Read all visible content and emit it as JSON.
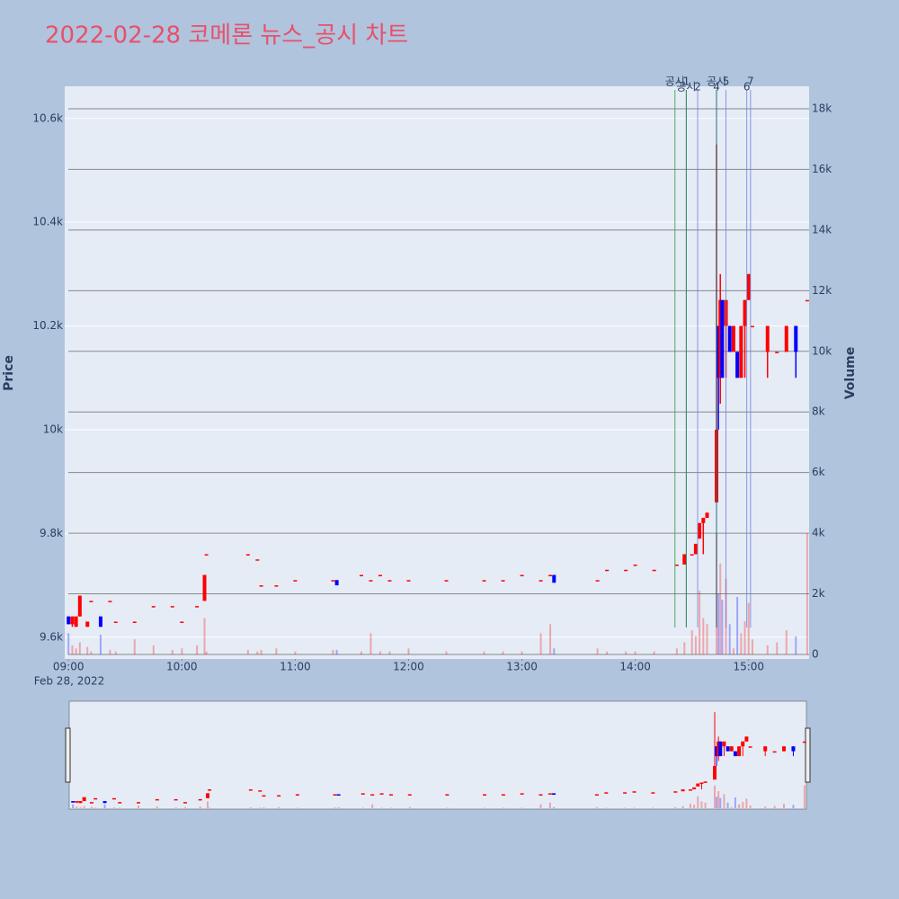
{
  "chart_data": {
    "type": "candlestick",
    "title": "2022-02-28 코메론 뉴스_공시 차트",
    "y_label": "Price",
    "y2_label": "Volume",
    "x_date_label": "Feb 28, 2022",
    "xlim": [
      "08:58",
      "15:32"
    ],
    "xticks": [
      "09:00",
      "10:00",
      "11:00",
      "12:00",
      "13:00",
      "14:00",
      "15:00"
    ],
    "ylim": [
      9558,
      10662
    ],
    "yticks": [
      {
        "value": 9600,
        "label": "9.6k"
      },
      {
        "value": 9800,
        "label": "9.8k"
      },
      {
        "value": 10000,
        "label": "10k"
      },
      {
        "value": 10200,
        "label": "10.2k"
      },
      {
        "value": 10400,
        "label": "10.4k"
      },
      {
        "value": 10600,
        "label": "10.6k"
      }
    ],
    "y2lim": [
      -148,
      18741
    ],
    "y2ticks": [
      0,
      {
        "value": 2000,
        "label": "2k"
      },
      {
        "value": 4000,
        "label": "4k"
      },
      {
        "value": 6000,
        "label": "6k"
      },
      {
        "value": 8000,
        "label": "8k"
      },
      {
        "value": 10000,
        "label": "10k"
      },
      {
        "value": 12000,
        "label": "12k"
      },
      {
        "value": 14000,
        "label": "14k"
      },
      {
        "value": 16000,
        "label": "16k"
      },
      {
        "value": 18000,
        "label": "18k"
      }
    ],
    "increasing_color": "#ff0000",
    "decreasing_color": "#0000ff",
    "x": [
      "09:00",
      "09:02",
      "09:04",
      "09:06",
      "09:10",
      "09:12",
      "09:17",
      "09:22",
      "09:25",
      "09:35",
      "09:45",
      "09:55",
      "10:00",
      "10:08",
      "10:12",
      "10:13",
      "10:35",
      "10:40",
      "10:42",
      "10:50",
      "11:00",
      "11:20",
      "11:22",
      "11:35",
      "11:40",
      "11:45",
      "11:50",
      "12:00",
      "12:20",
      "12:40",
      "12:50",
      "13:00",
      "13:10",
      "13:15",
      "13:17",
      "13:40",
      "13:45",
      "13:55",
      "14:00",
      "14:10",
      "14:22",
      "14:26",
      "14:30",
      "14:32",
      "14:34",
      "14:36",
      "14:38",
      "14:43",
      "14:44",
      "14:45",
      "14:46",
      "14:48",
      "14:50",
      "14:52",
      "14:54",
      "14:56",
      "14:58",
      "15:00",
      "15:02",
      "15:10",
      "15:15",
      "15:20",
      "15:25",
      "15:31"
    ],
    "open": [
      9640,
      9625,
      9620,
      9640,
      9620,
      9670,
      9640,
      9670,
      9630,
      9630,
      9660,
      9660,
      9630,
      9660,
      9670,
      9760,
      9760,
      9750,
      9700,
      9700,
      9710,
      9710,
      9710,
      9720,
      9710,
      9720,
      9710,
      9710,
      9710,
      9710,
      9710,
      9720,
      9710,
      9720,
      9720,
      9710,
      9730,
      9730,
      9740,
      9730,
      9740,
      9740,
      9760,
      9760,
      9790,
      9820,
      9830,
      9860,
      10200,
      10100,
      10250,
      10200,
      10200,
      10150,
      10150,
      10100,
      10200,
      10250,
      10200,
      10150,
      10150,
      10150,
      10200,
      10250
    ],
    "high": [
      9640,
      9640,
      9640,
      9680,
      9630,
      9670,
      9640,
      9670,
      9630,
      9630,
      9660,
      9660,
      9630,
      9660,
      9720,
      9760,
      9760,
      9750,
      9700,
      9700,
      9710,
      9710,
      9710,
      9720,
      9710,
      9720,
      9710,
      9710,
      9710,
      9710,
      9710,
      9720,
      9710,
      9720,
      9720,
      9710,
      9730,
      9730,
      9740,
      9730,
      9740,
      9760,
      9760,
      9780,
      9820,
      9830,
      9840,
      10550,
      10200,
      10300,
      10250,
      10250,
      10200,
      10200,
      10150,
      10200,
      10250,
      10300,
      10200,
      10200,
      10150,
      10200,
      10200,
      10250
    ],
    "low": [
      9625,
      9620,
      9620,
      9640,
      9620,
      9670,
      9620,
      9670,
      9630,
      9630,
      9660,
      9660,
      9630,
      9660,
      9670,
      9760,
      9760,
      9750,
      9700,
      9700,
      9710,
      9710,
      9700,
      9720,
      9710,
      9720,
      9710,
      9710,
      9710,
      9710,
      9710,
      9720,
      9710,
      9720,
      9705,
      9710,
      9730,
      9730,
      9740,
      9730,
      9740,
      9740,
      9760,
      9760,
      9790,
      9760,
      9830,
      9860,
      10000,
      10050,
      10100,
      10100,
      10150,
      10150,
      10100,
      10100,
      10100,
      10250,
      10200,
      10100,
      10150,
      10150,
      10100,
      10250
    ],
    "close": [
      9625,
      9640,
      9640,
      9680,
      9630,
      9670,
      9620,
      9670,
      9630,
      9630,
      9660,
      9660,
      9630,
      9660,
      9720,
      9760,
      9760,
      9750,
      9700,
      9700,
      9710,
      9710,
      9700,
      9720,
      9710,
      9720,
      9710,
      9710,
      9710,
      9710,
      9710,
      9720,
      9710,
      9720,
      9705,
      9710,
      9730,
      9730,
      9740,
      9730,
      9740,
      9760,
      9760,
      9780,
      9820,
      9830,
      9840,
      10000,
      10100,
      10250,
      10100,
      10250,
      10150,
      10200,
      10100,
      10200,
      10250,
      10300,
      10200,
      10200,
      10150,
      10200,
      10150,
      10250
    ],
    "volume": [
      700,
      300,
      200,
      400,
      250,
      100,
      650,
      150,
      100,
      500,
      300,
      150,
      200,
      300,
      1200,
      100,
      150,
      100,
      150,
      200,
      100,
      150,
      150,
      100,
      700,
      100,
      100,
      200,
      100,
      100,
      100,
      100,
      700,
      1000,
      200,
      200,
      100,
      100,
      100,
      100,
      200,
      400,
      800,
      600,
      2100,
      1200,
      1000,
      4000,
      2000,
      3000,
      1800,
      2500,
      1000,
      200,
      1900,
      700,
      1100,
      1700,
      500,
      300,
      400,
      800,
      600,
      4000
    ],
    "markers": [
      {
        "x": "14:21",
        "label": "공시",
        "color": "#2ca02c"
      },
      {
        "x": "14:27",
        "label": "공시",
        "color": "#2ca02c"
      },
      {
        "x": "14:27",
        "label": "1",
        "color": "#2f7f6f"
      },
      {
        "x": "14:33",
        "label": "2",
        "color": "#6d83d6"
      },
      {
        "x": "14:43",
        "label": "공시",
        "color": "#1f6f7f"
      },
      {
        "x": "14:43",
        "label": "4",
        "color": "#1f6f7f"
      },
      {
        "x": "14:48",
        "label": "5",
        "color": "#6d83d6"
      },
      {
        "x": "14:59",
        "label": "6",
        "color": "#6d83d6"
      },
      {
        "x": "15:01",
        "label": "7",
        "color": "#6d83d6"
      }
    ]
  }
}
